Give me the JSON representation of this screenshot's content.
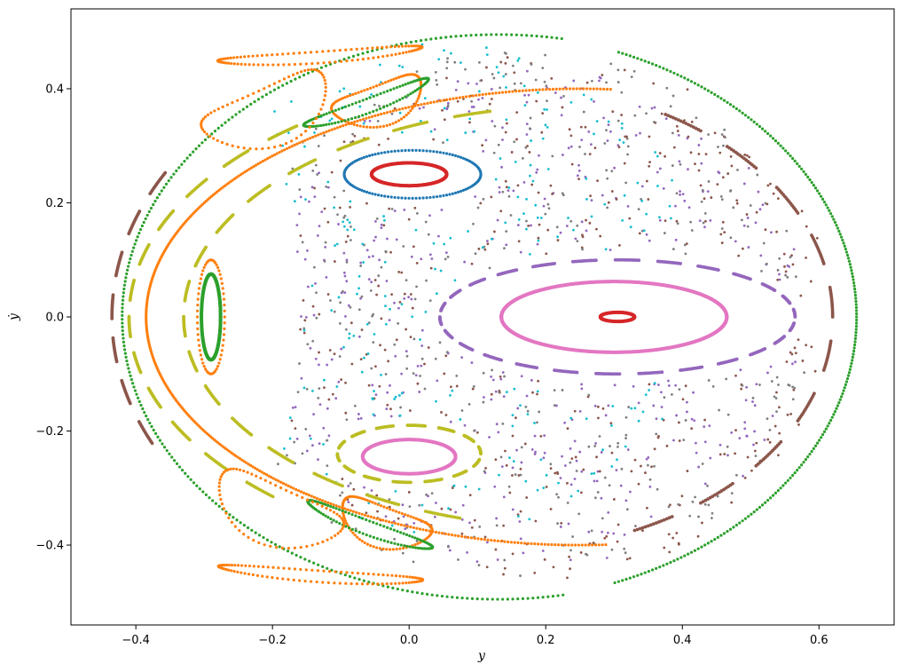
{
  "chart_data": {
    "type": "scatter",
    "title": "",
    "xlabel": "y",
    "ylabel": "ẏ",
    "xlim": [
      -0.495,
      0.71
    ],
    "ylim": [
      -0.54,
      0.54
    ],
    "xticks": [
      -0.4,
      -0.2,
      0.0,
      0.2,
      0.4,
      0.6
    ],
    "yticks": [
      -0.4,
      -0.2,
      0.0,
      0.2,
      0.4
    ],
    "xtick_labels": [
      "−0.4",
      "−0.2",
      "0.0",
      "0.2",
      "0.4",
      "0.6"
    ],
    "ytick_labels": [
      "−0.4",
      "−0.2",
      "0.0",
      "0.2",
      "0.4"
    ],
    "grid": false,
    "legend": "none",
    "colors": {
      "blue": "#1f77b4",
      "orange": "#ff7f0e",
      "green": "#2ca02c",
      "red": "#d62728",
      "purple": "#9467bd",
      "brown": "#8c564b",
      "pink": "#e377c2",
      "gray": "#7f7f7f",
      "olive": "#bcbd22",
      "cyan": "#17becf"
    },
    "curves": [
      {
        "color": "red",
        "kind": "ellipse",
        "cx": 0.0,
        "cy": 0.25,
        "rx": 0.055,
        "ry": 0.02,
        "dense": true
      },
      {
        "color": "red",
        "kind": "ellipse",
        "cx": 0.305,
        "cy": 0.0,
        "rx": 0.025,
        "ry": 0.008,
        "dense": true
      },
      {
        "color": "blue",
        "kind": "ellipse",
        "cx": 0.005,
        "cy": 0.25,
        "rx": 0.1,
        "ry": 0.042,
        "dense": false,
        "n": 120
      },
      {
        "color": "pink",
        "kind": "ellipse",
        "cx": 0.3,
        "cy": 0.0,
        "rx": 0.165,
        "ry": 0.062,
        "dense": true
      },
      {
        "color": "pink",
        "kind": "ellipse",
        "cx": 0.0,
        "cy": -0.245,
        "rx": 0.068,
        "ry": 0.03,
        "dense": true
      },
      {
        "color": "purple",
        "kind": "ellipse",
        "cx": 0.305,
        "cy": 0.0,
        "rx": 0.26,
        "ry": 0.1,
        "dashed": true,
        "segments": 26
      },
      {
        "color": "olive",
        "kind": "ellipse",
        "cx": 0.0,
        "cy": -0.24,
        "rx": 0.105,
        "ry": 0.05,
        "dashed": true,
        "segments": 14
      },
      {
        "color": "green",
        "kind": "ellipse",
        "cx": -0.29,
        "cy": 0.0,
        "rx": 0.014,
        "ry": 0.075,
        "dense": true
      },
      {
        "color": "orange",
        "kind": "ellipse",
        "cx": -0.29,
        "cy": 0.0,
        "rx": 0.02,
        "ry": 0.1,
        "dense": false,
        "n": 60
      },
      {
        "color": "orange",
        "kind": "arc",
        "cx": 0.25,
        "cy": 0.0,
        "rx": 0.635,
        "ry": 0.4,
        "t0": 1.5,
        "t1": 4.78,
        "n": 420
      },
      {
        "color": "olive",
        "kind": "arc",
        "cx": 0.25,
        "cy": 0.0,
        "rx": 0.58,
        "ry": 0.37,
        "t0": 1.8,
        "t1": 4.48,
        "dashed": true,
        "segments": 16
      },
      {
        "color": "olive",
        "kind": "arc",
        "cx": 0.25,
        "cy": 0.0,
        "rx": 0.66,
        "ry": 0.43,
        "t0": 2.25,
        "t1": 4.03,
        "dashed": true,
        "segments": 12
      },
      {
        "color": "brown",
        "kind": "arc",
        "cx": 0.11,
        "cy": 0.0,
        "rx": 0.545,
        "ry": 0.49,
        "t0": 2.6,
        "t1": 3.68,
        "dashed": true,
        "segments": 7
      },
      {
        "color": "green",
        "kind": "arc",
        "cx": 0.13,
        "cy": 0.0,
        "rx": 0.55,
        "ry": 0.495,
        "t0": 1.4,
        "t1": 4.9,
        "n": 260
      },
      {
        "color": "green",
        "kind": "arc",
        "cx": 0.1,
        "cy": 0.0,
        "rx": 0.555,
        "ry": 0.5,
        "t0": -1.2,
        "t1": 1.2,
        "n": 220
      },
      {
        "color": "brown",
        "kind": "arc",
        "cx": 0.13,
        "cy": 0.0,
        "rx": 0.49,
        "ry": 0.41,
        "t0": -1.15,
        "t1": 1.15,
        "dashed": true,
        "segments": 10
      },
      {
        "color": "orange",
        "kind": "crescent",
        "cx": -0.04,
        "cy": 0.37,
        "rx": 0.07,
        "ry": 0.035,
        "tilt": 0.42,
        "n": 90
      },
      {
        "color": "green",
        "kind": "crescent",
        "cx": -0.06,
        "cy": 0.37,
        "rx": 0.1,
        "ry": 0.012,
        "tilt": 0.42,
        "n": 110
      },
      {
        "color": "orange",
        "kind": "crescent",
        "cx": -0.04,
        "cy": -0.37,
        "rx": 0.07,
        "ry": 0.035,
        "tilt": -0.42,
        "n": 90
      },
      {
        "color": "green",
        "kind": "crescent",
        "cx": -0.06,
        "cy": -0.37,
        "rx": 0.1,
        "ry": 0.012,
        "tilt": -0.42,
        "n": 110
      },
      {
        "color": "orange",
        "kind": "crescent",
        "cx": -0.13,
        "cy": 0.455,
        "rx": 0.15,
        "ry": 0.01,
        "tilt": 0.08,
        "n": 110
      },
      {
        "color": "orange",
        "kind": "crescent",
        "cx": -0.13,
        "cy": -0.455,
        "rx": 0.15,
        "ry": 0.01,
        "tilt": -0.08,
        "n": 110
      },
      {
        "color": "orange",
        "kind": "crescent",
        "cx": -0.2,
        "cy": 0.35,
        "rx": 0.1,
        "ry": 0.05,
        "tilt": 0.5,
        "n": 70
      },
      {
        "color": "orange",
        "kind": "crescent",
        "cx": -0.2,
        "cy": -0.35,
        "rx": 0.1,
        "ry": 0.05,
        "tilt": -0.5,
        "n": 70
      }
    ],
    "chaotic_sea": [
      {
        "color": "purple",
        "region": {
          "cx": 0.18,
          "cy": 0.0,
          "rx": 0.4,
          "ry": 0.44
        },
        "n": 420
      },
      {
        "color": "brown",
        "region": {
          "cx": 0.2,
          "cy": 0.0,
          "rx": 0.42,
          "ry": 0.46
        },
        "n": 400
      },
      {
        "color": "gray",
        "region": {
          "cx": 0.16,
          "cy": 0.0,
          "rx": 0.43,
          "ry": 0.47
        },
        "n": 380
      },
      {
        "color": "cyan",
        "region": {
          "cx": 0.05,
          "cy": 0.05,
          "rx": 0.38,
          "ry": 0.43
        },
        "n": 240
      }
    ],
    "exclusions": [
      {
        "cx": 0.305,
        "cy": 0.0,
        "rx": 0.28,
        "ry": 0.115
      },
      {
        "cx": 0.005,
        "cy": 0.25,
        "rx": 0.115,
        "ry": 0.055
      },
      {
        "cx": 0.0,
        "cy": -0.24,
        "rx": 0.12,
        "ry": 0.065
      },
      {
        "cx": -0.29,
        "cy": 0.0,
        "rx": 0.035,
        "ry": 0.11
      },
      {
        "cx": -0.44,
        "cy": 0.0,
        "rx": 0.28,
        "ry": 0.55
      }
    ]
  }
}
